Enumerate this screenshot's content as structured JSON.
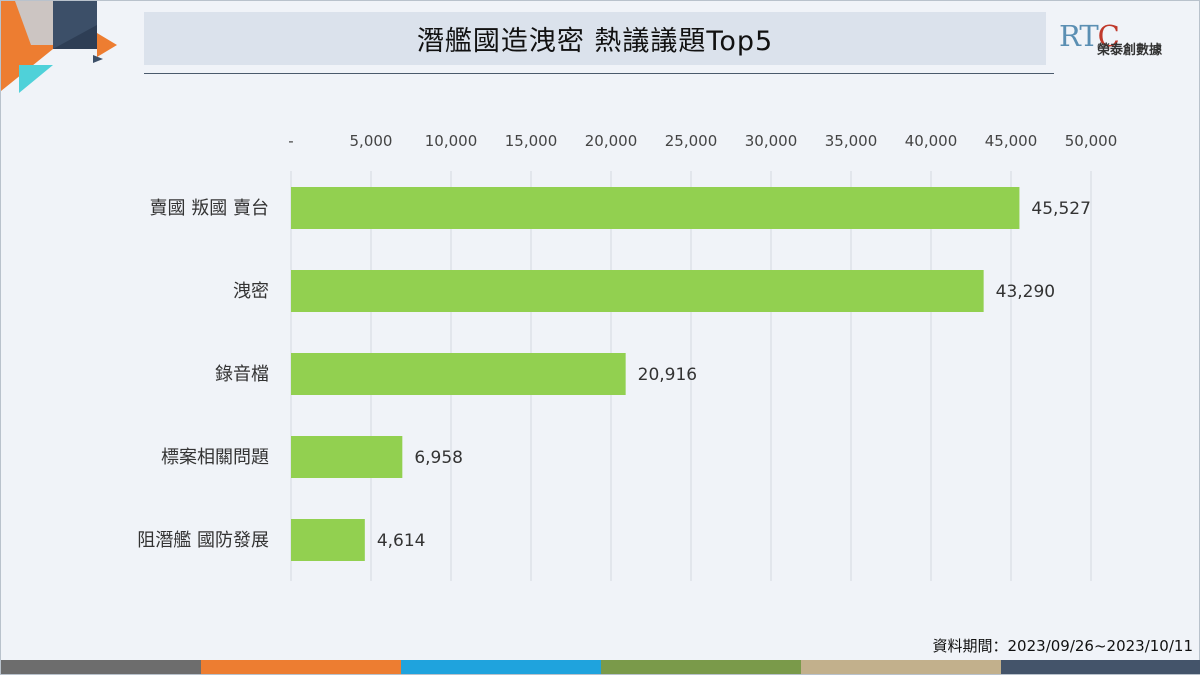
{
  "title": "潛艦國造洩密 熱議議題Top5",
  "logo": {
    "mark_r": "R",
    "mark_t": "T",
    "mark_c": "C",
    "name": "榮泰創數據"
  },
  "source_note": "資料期間：2023/09/26~2023/10/11",
  "colors": {
    "bar": "#92d050",
    "bottom_bar": [
      "#6d6d6d",
      "#ed7d31",
      "#1fa3dd",
      "#7a9a4a",
      "#c2b08c",
      "#44546a"
    ]
  },
  "chart_data": {
    "type": "bar",
    "orientation": "horizontal",
    "categories": [
      "賣國 叛國 賣台",
      "洩密",
      "錄音檔",
      "標案相關問題",
      "阻潛艦 國防發展"
    ],
    "values": [
      45527,
      43290,
      20916,
      6958,
      4614
    ],
    "value_labels": [
      "45,527",
      "43,290",
      "20,916",
      "6,958",
      "4,614"
    ],
    "xlim": [
      0,
      50000
    ],
    "x_ticks": [
      0,
      5000,
      10000,
      15000,
      20000,
      25000,
      30000,
      35000,
      40000,
      45000,
      50000
    ],
    "x_tick_labels": [
      "-",
      "5,000",
      "10,000",
      "15,000",
      "20,000",
      "25,000",
      "30,000",
      "35,000",
      "40,000",
      "45,000",
      "50,000"
    ],
    "axis_position": "top",
    "grid": true,
    "legend": false
  }
}
